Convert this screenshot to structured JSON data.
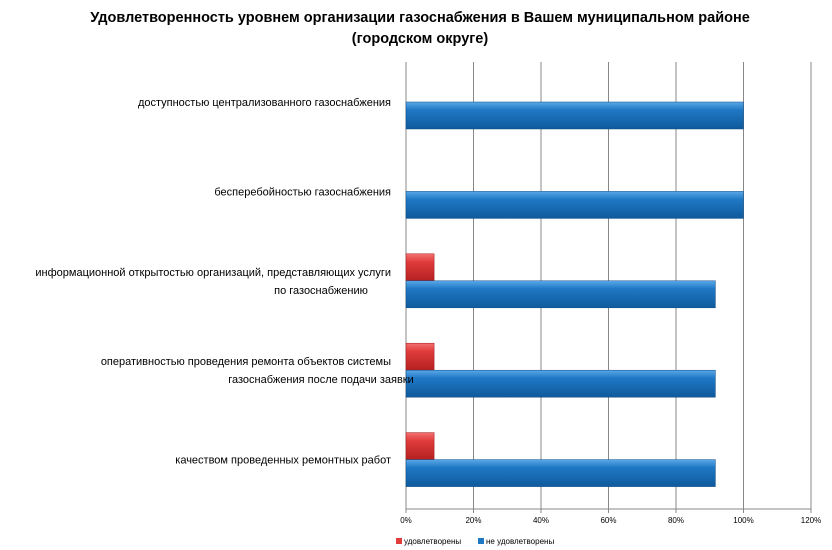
{
  "chart_data": {
    "type": "bar",
    "orientation": "horizontal",
    "title": "Удовлетворенность уровнем организации газоснабжения в Вашем муниципальном районе (городском округе)",
    "categories": [
      [
        "доступностью централизованного газоснабжения"
      ],
      [
        "бесперебойностью газоснабжения"
      ],
      [
        "информационной открытостью организаций, представляющих услуги",
        "по газоснабжению"
      ],
      [
        "оперативностью проведения ремонта объектов системы",
        "газоснабжения после подачи заявки"
      ],
      [
        "качеством проведенных ремонтных работ"
      ]
    ],
    "series": [
      {
        "name": "удовлетворены",
        "color": "#e03c3c",
        "values": [
          0,
          0,
          8.33,
          8.33,
          8.33
        ]
      },
      {
        "name": "не удовлетворены",
        "color": "#1f78c4",
        "values": [
          100,
          100,
          91.67,
          91.67,
          91.67
        ]
      }
    ],
    "xlim": [
      0,
      120
    ],
    "xticks": [
      "0%",
      "20%",
      "40%",
      "60%",
      "80%",
      "100%",
      "120%"
    ],
    "grid": true,
    "legend": "bottom-left"
  }
}
